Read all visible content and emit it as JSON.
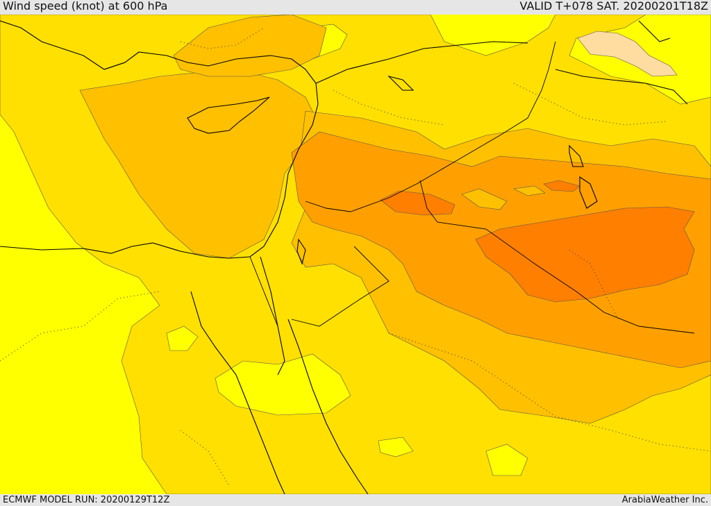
{
  "header": {
    "title": "Wind speed (knot) at 600 hPa",
    "valid": "VALID T+078 SAT. 20200201T18Z"
  },
  "footer": {
    "model_run": "ECMWF MODEL RUN: 20200129T12Z",
    "credit": "ArabiaWeather Inc."
  },
  "map": {
    "colors": {
      "band_yellow": "#ffff00",
      "band_light_gold": "#ffe000",
      "band_gold": "#ffc000",
      "band_orange": "#ffa000",
      "band_dark_orange": "#ff7f00",
      "band_pale": "#ffdca0",
      "coastline": "#000000"
    }
  }
}
